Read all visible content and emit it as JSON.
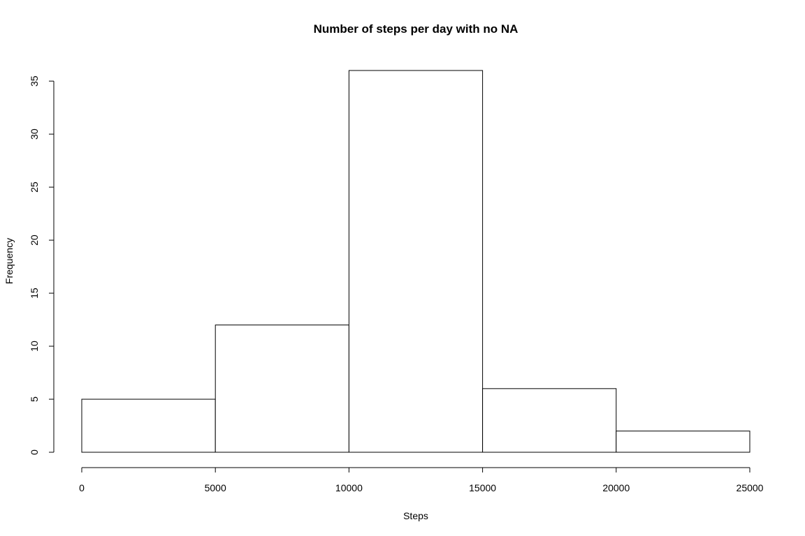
{
  "chart_data": {
    "type": "bar",
    "subtype": "histogram",
    "title": "Number of steps per day with no NA",
    "xlabel": "Steps",
    "ylabel": "Frequency",
    "bins": [
      {
        "from": 0,
        "to": 5000,
        "value": 5
      },
      {
        "from": 5000,
        "to": 10000,
        "value": 12
      },
      {
        "from": 10000,
        "to": 15000,
        "value": 36
      },
      {
        "from": 15000,
        "to": 20000,
        "value": 6
      },
      {
        "from": 20000,
        "to": 25000,
        "value": 2
      }
    ],
    "xlim": [
      0,
      25000
    ],
    "ylim": [
      0,
      36
    ],
    "xticks": [
      0,
      5000,
      10000,
      15000,
      20000,
      25000
    ],
    "yticks": [
      0,
      5,
      10,
      15,
      20,
      25,
      30,
      35
    ],
    "grid": false,
    "legend": "none",
    "colors": {
      "bar_fill": "#ffffff",
      "bar_stroke": "#000000"
    }
  }
}
